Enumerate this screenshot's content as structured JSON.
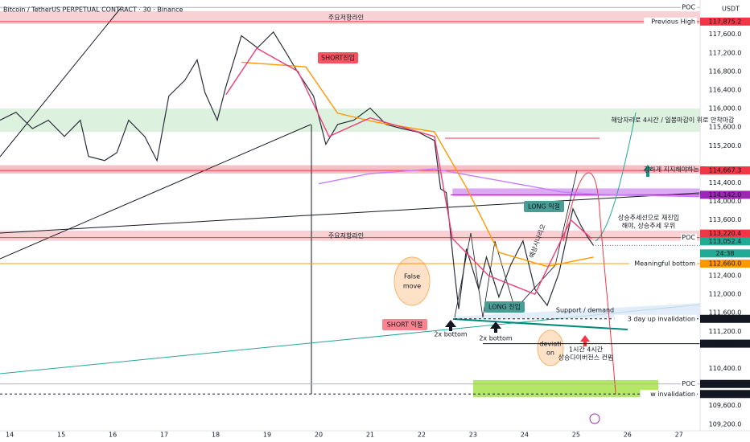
{
  "chart_data": {
    "type": "line",
    "title": "Bitcoin / TetherUS PERPETUAL CONTRACT · 30 · Binance",
    "currency": "USDT",
    "xlim": [
      13.81,
      27.41
    ],
    "xticks": [
      14,
      15,
      16,
      17,
      18,
      19,
      20,
      21,
      22,
      23,
      24,
      25,
      26,
      27
    ],
    "ylim": [
      109110,
      118340
    ],
    "yticks": [
      {
        "value": 117600,
        "label": "117,600.0"
      },
      {
        "value": 117200,
        "label": "117,200.0"
      },
      {
        "value": 116800,
        "label": "116,800.0"
      },
      {
        "value": 116400,
        "label": "116,400.0"
      },
      {
        "value": 116000,
        "label": "116,000.0"
      },
      {
        "value": 115600,
        "label": "115,600.0"
      },
      {
        "value": 115200,
        "label": "115,200.0"
      },
      {
        "value": 114400,
        "label": "114,400.0"
      },
      {
        "value": 114000,
        "label": "114,000.0"
      },
      {
        "value": 113600,
        "label": "113,600.0"
      },
      {
        "value": 112400,
        "label": "112,400.0"
      },
      {
        "value": 112000,
        "label": "112,000.0"
      },
      {
        "value": 111600,
        "label": "111,600.0"
      },
      {
        "value": 111200,
        "label": "111,200.0"
      },
      {
        "value": 110400,
        "label": "110,400.0"
      },
      {
        "value": 109600,
        "label": "109,600.0"
      },
      {
        "value": 109200,
        "label": "109,200.0"
      }
    ],
    "series": [
      {
        "color": "#2a2e39",
        "x": [
          13.81,
          14.12,
          14.44,
          14.75,
          15.06,
          15.37,
          15.53,
          15.84,
          16.08,
          16.31,
          16.62,
          16.86,
          17.09,
          17.4,
          17.64,
          17.79,
          18.03,
          18.19,
          18.5,
          18.81,
          19.12,
          19.36,
          19.59,
          19.9,
          20.14,
          20.37,
          20.68,
          21,
          21.31,
          21.62,
          21.94,
          22.25,
          22.37,
          22.48,
          22.64,
          22.72,
          22.87,
          23.11,
          23.26,
          23.5,
          23.73,
          23.97,
          24.2,
          24.44,
          24.67,
          24.94,
          25.09,
          25.22,
          25.34
        ],
        "values": [
          115750,
          115920,
          115570,
          115750,
          115400,
          115750,
          114970,
          114880,
          115050,
          115750,
          115400,
          114880,
          116270,
          116610,
          117050,
          116350,
          115750,
          116440,
          117570,
          117310,
          117650,
          117220,
          116790,
          116270,
          115230,
          115660,
          115750,
          116010,
          115660,
          115570,
          115490,
          115310,
          114270,
          114190,
          112460,
          111680,
          112980,
          112110,
          112800,
          111940,
          112630,
          113150,
          112110,
          111760,
          112460,
          113840,
          113490,
          113240,
          113050
        ]
      },
      {
        "color": "#ff9800",
        "x": [
          18.5,
          19.75,
          20.37,
          21.15,
          22.25,
          22.87,
          23.5,
          24.44,
          25.34
        ],
        "values": [
          117000,
          116900,
          115900,
          115700,
          115500,
          114300,
          112900,
          112600,
          112800
        ]
      },
      {
        "color": "#c77dff",
        "x": [
          20.0,
          21.0,
          22.25,
          23.0,
          24.0,
          24.75,
          25.5,
          27.41
        ],
        "values": [
          114380,
          114600,
          114700,
          114550,
          114350,
          114200,
          114150,
          114100
        ]
      },
      {
        "color": "#ec407a",
        "x": [
          18.2,
          18.8,
          19.6,
          20.2,
          21,
          22.25,
          22.6,
          23.3,
          24.2,
          24.9,
          25.3
        ],
        "values": [
          116300,
          117300,
          116800,
          115400,
          115800,
          115400,
          113200,
          112400,
          112000,
          113600,
          113200
        ]
      }
    ],
    "zones": [
      {
        "label": "주요저항라인",
        "from": 117820,
        "to": 118100,
        "color": "#f6c9cc"
      },
      {
        "label": "해당자리로 4시간 / 일봉마감이 위로 안착마감",
        "from": 115500,
        "to": 116000,
        "color": "#d7efd9"
      },
      {
        "label": "강하게 지지해야하는 구간",
        "from": 114600,
        "to": 114780,
        "color": "#f4b6bb"
      },
      {
        "from": 114110,
        "to": 114280,
        "x": [
          22.6,
          27.41
        ],
        "color": "#d59bf0"
      },
      {
        "label": "주요저항라인",
        "from": 113150,
        "to": 113370,
        "color": "#f6c9cc"
      },
      {
        "from": 109780,
        "to": 110150,
        "x": [
          23.0,
          26.6
        ],
        "color": "#a6e34a"
      }
    ],
    "levels": [
      {
        "tag": "POC",
        "value": 118180
      },
      {
        "tag": "Previous High",
        "value": 117875.2,
        "label": "117,875.2",
        "color": "#f23645"
      },
      {
        "value": 114667.3,
        "label": "114,667.3",
        "color": "#f23645"
      },
      {
        "value": 114142.0,
        "label": "114,142.0",
        "color": "#9c27b0"
      },
      {
        "tag": "POC",
        "value": 113220.4,
        "label": "113,220.4",
        "color": "#f23645"
      },
      {
        "value": 113052.4,
        "label": "113,052.4",
        "color": "#22ab94"
      },
      {
        "tag": "Meaningful bottom",
        "value": 112660.0,
        "label": "112,660.0",
        "color": "#ff9800"
      },
      {
        "tag": "3 day up invalidation",
        "value": 111469.2,
        "label": "111,469.2",
        "color": "#131722"
      },
      {
        "value": 110935.0,
        "label": "110,935.0",
        "color": "#131722"
      },
      {
        "tag": "POC",
        "value": 110066.9,
        "label": "110,066.9",
        "color": "#131722"
      },
      {
        "tag": "w invalidation",
        "value": 109850.0,
        "label": "109,850.0",
        "color": "#131722"
      }
    ],
    "countdown": "24:38",
    "annotations": [
      "SHORT진입",
      "LONG 익절",
      "상승추세선으로 재진입",
      "해야, 상승추세 우위",
      "False",
      "move",
      "LONG 진입",
      "Support / demand",
      "SHORT 익절",
      "2x bottom",
      "2x bottom",
      "deviati",
      "on",
      "1시간 4시간",
      "상승다이버전스 컨펌",
      "예상시나리오"
    ]
  }
}
